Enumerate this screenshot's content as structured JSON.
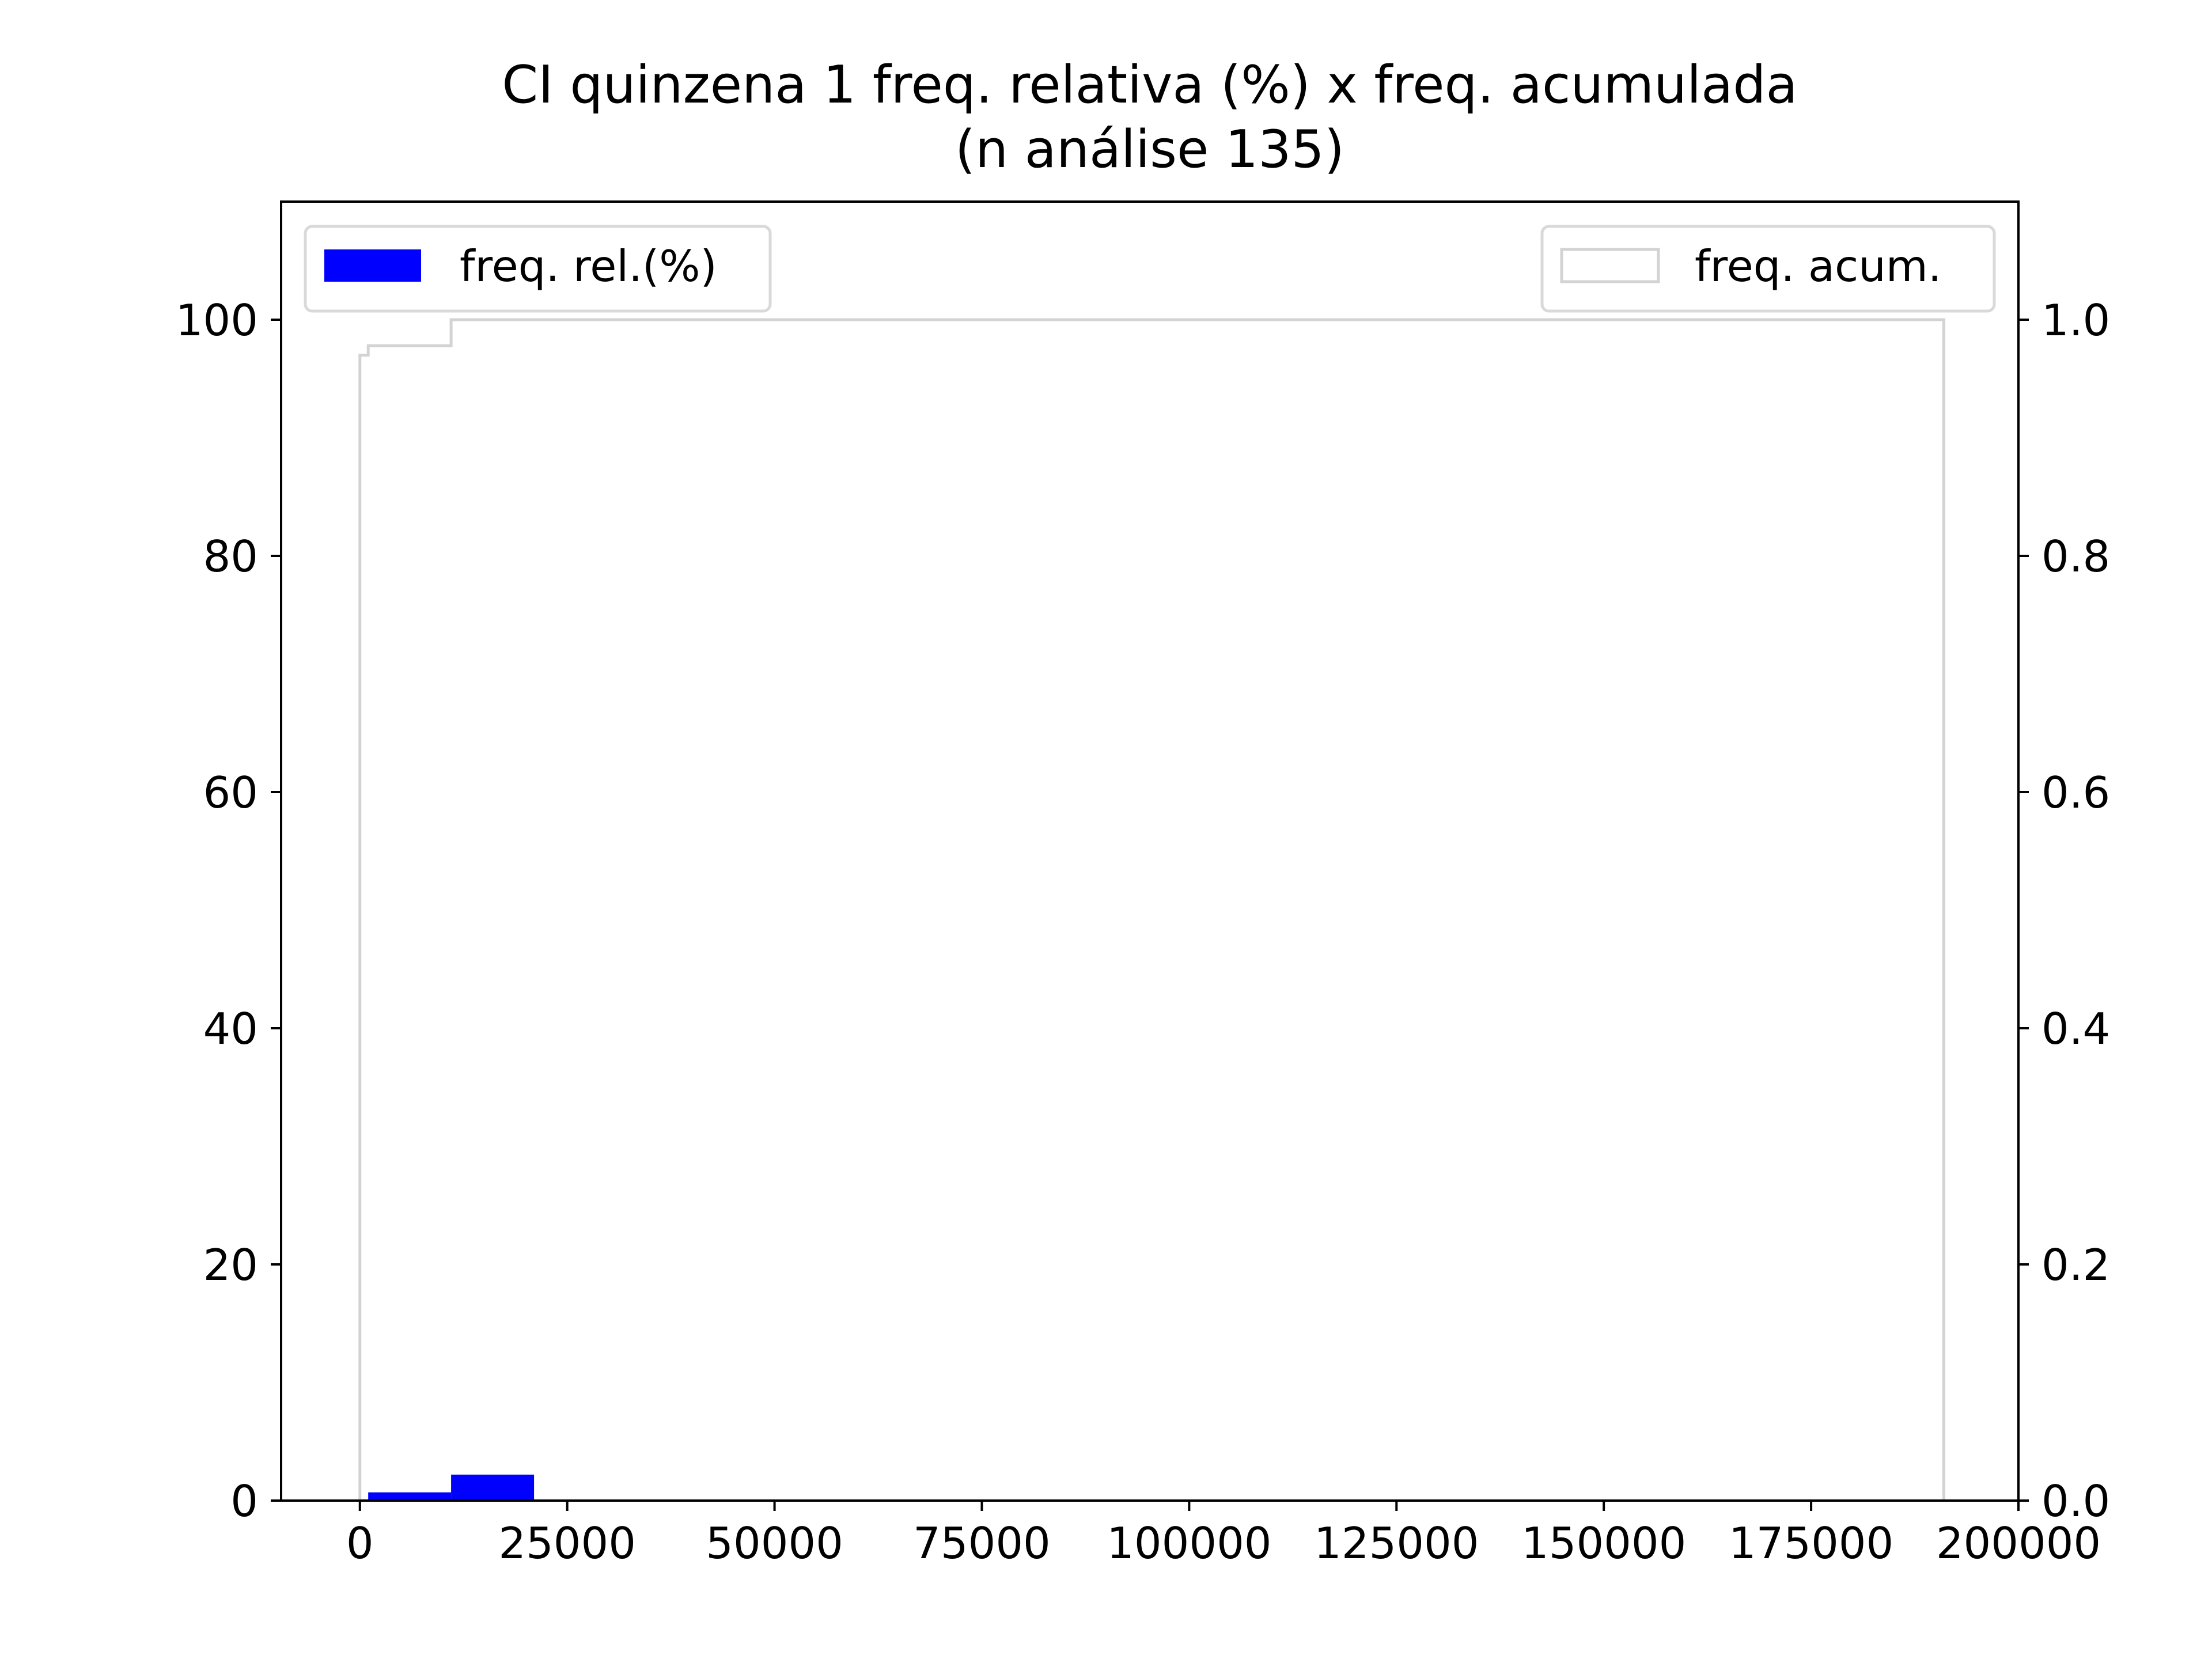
{
  "chart_data": {
    "type": "bar",
    "title": "CI quinzena 1 freq. relativa (%) x freq. acumulada",
    "subtitle": "(n análise 135)",
    "xlim": [
      -9500,
      200000
    ],
    "x_ticks": [
      0,
      25000,
      50000,
      75000,
      100000,
      125000,
      150000,
      175000,
      200000
    ],
    "x_tick_labels": [
      "0",
      "25000",
      "50000",
      "75000",
      "100000",
      "125000",
      "150000",
      "175000",
      "200000"
    ],
    "y_left": {
      "lim": [
        0,
        110
      ],
      "ticks": [
        0,
        20,
        40,
        60,
        80,
        100
      ],
      "tick_labels": [
        "0",
        "20",
        "40",
        "60",
        "80",
        "100"
      ]
    },
    "y_right": {
      "lim": [
        0,
        1.1
      ],
      "ticks": [
        0.0,
        0.2,
        0.4,
        0.6,
        0.8,
        1.0
      ],
      "tick_labels": [
        "0.0",
        "0.2",
        "0.4",
        "0.6",
        "0.8",
        "1.0"
      ]
    },
    "series": [
      {
        "name": "freq. rel.(%)",
        "kind": "bar",
        "axis": "left",
        "color": "#0000ff",
        "bins": [
          {
            "x0": 1000,
            "x1": 11000,
            "value": 0.7
          },
          {
            "x0": 11000,
            "x1": 21000,
            "value": 2.2
          }
        ]
      },
      {
        "name": "freq. acum.",
        "kind": "step",
        "axis": "right",
        "color": "#d3d3d3",
        "points": [
          {
            "x": 0,
            "y": 0.0
          },
          {
            "x": 0,
            "y": 0.97
          },
          {
            "x": 1000,
            "y": 0.97
          },
          {
            "x": 1000,
            "y": 0.978
          },
          {
            "x": 11000,
            "y": 0.978
          },
          {
            "x": 11000,
            "y": 1.0
          },
          {
            "x": 191000,
            "y": 1.0
          },
          {
            "x": 191000,
            "y": 0.0
          }
        ]
      }
    ],
    "legends": {
      "left": {
        "position": "upper-left",
        "label": "freq. rel.(%)",
        "color": "#0000ff"
      },
      "right": {
        "position": "upper-right",
        "label": "freq. acum.",
        "color": "#d3d3d3"
      }
    },
    "grid": false
  }
}
